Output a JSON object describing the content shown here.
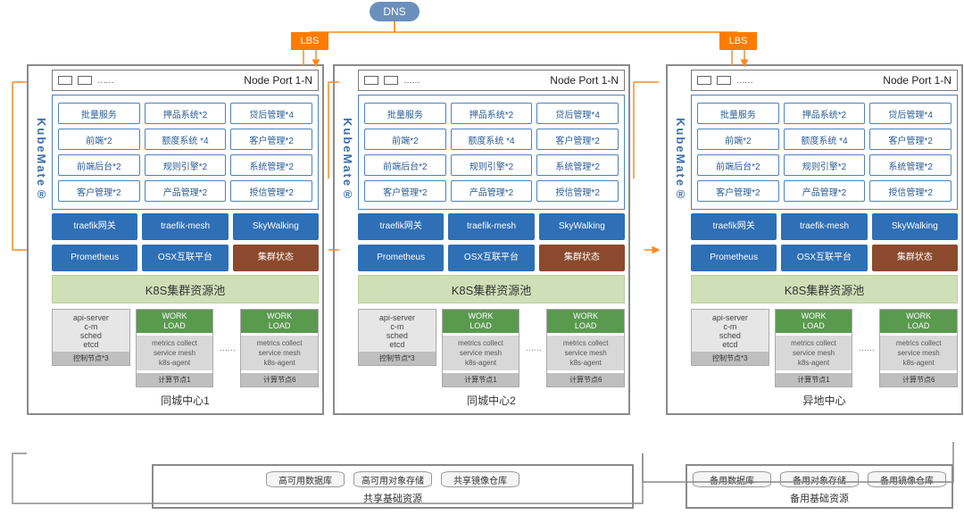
{
  "dns": "DNS",
  "lbs": "LBS",
  "sidebar_label": "KubeMate®",
  "nodeport": {
    "title": "Node Port 1-N",
    "dots": "……"
  },
  "services": [
    "批量服务",
    "押品系统*2",
    "贷后管理*4",
    "前端*2",
    "额度系统 *4",
    "客户管理*2",
    "前端后台*2",
    "规则引擎*2",
    "系统管理*2",
    "客户管理*2",
    "产品管理*2",
    "授信管理*2"
  ],
  "tools_row1": [
    "traefik网关",
    "traefik-mesh",
    "SkyWalking"
  ],
  "tools_row2": [
    "Prometheus",
    "OSX互联平台",
    "集群状态"
  ],
  "pool_title": "K8S集群资源池",
  "ctrl_node": {
    "lines": [
      "api-server",
      "c-m",
      "sched",
      "etcd"
    ],
    "foot": "控制节点*3"
  },
  "work_node": {
    "wl": "WORK LOAD",
    "sub": [
      "metrics collect",
      "service mesh",
      "k8s-agent"
    ],
    "foot1": "计算节点1",
    "foot6": "计算节点6"
  },
  "nodes_dots": "……",
  "dc_labels": [
    "同城中心1",
    "同城中心2",
    "异地中心"
  ],
  "shared_1": {
    "items": [
      "高可用数据库",
      "高可用对象存储",
      "共享镜像仓库"
    ],
    "title": "共享基础资源"
  },
  "shared_2": {
    "items": [
      "备用数据库",
      "备用对象存储",
      "备用镜像仓库"
    ],
    "title": "备用基础资源"
  },
  "colors": {
    "dns": "#6b8fbd",
    "lbs": "#ff7b00",
    "svc_border": "#4d82be",
    "svc_text": "#2b5c94",
    "tool_bg": "#2f6fb5",
    "tool_brown": "#8b4a2e",
    "pool_bg": "#cfe0b8",
    "workload_bg": "#5a9a4f",
    "cluster_border": "#8a8a8a",
    "connector": "#ff8a1f",
    "connector_gray": "#8a8a8a"
  }
}
